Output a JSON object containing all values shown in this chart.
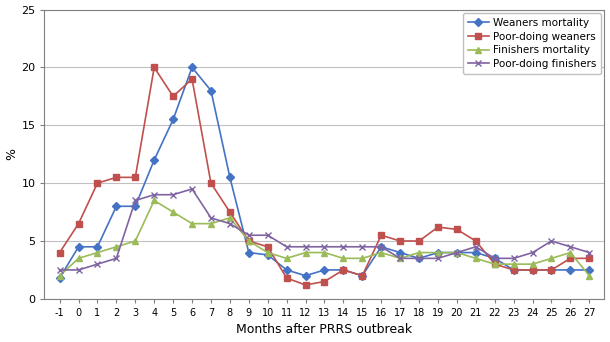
{
  "x": [
    -1,
    0,
    1,
    2,
    3,
    4,
    5,
    6,
    7,
    8,
    9,
    10,
    11,
    12,
    13,
    14,
    15,
    16,
    17,
    18,
    19,
    20,
    21,
    22,
    23,
    24,
    25,
    26,
    27
  ],
  "weaners_mortality": [
    1.8,
    4.5,
    4.5,
    8.0,
    8.0,
    12.0,
    15.5,
    20.0,
    18.0,
    10.5,
    4.0,
    3.8,
    2.5,
    2.0,
    2.5,
    2.5,
    2.0,
    4.5,
    4.0,
    3.5,
    4.0,
    4.0,
    4.0,
    3.5,
    2.5,
    2.5,
    2.5,
    2.5,
    2.5
  ],
  "poor_doing_weaners": [
    4.0,
    6.5,
    10.0,
    10.5,
    10.5,
    20.0,
    17.5,
    19.0,
    10.0,
    7.5,
    5.0,
    4.5,
    1.8,
    1.2,
    1.5,
    2.5,
    2.0,
    5.5,
    5.0,
    5.0,
    6.2,
    6.0,
    5.0,
    3.0,
    2.5,
    2.5,
    2.5,
    3.5,
    3.5
  ],
  "finishers_mortality": [
    2.0,
    3.5,
    4.0,
    4.5,
    5.0,
    8.5,
    7.5,
    6.5,
    6.5,
    7.0,
    5.0,
    4.0,
    3.5,
    4.0,
    4.0,
    3.5,
    3.5,
    4.0,
    3.5,
    4.0,
    4.0,
    4.0,
    3.5,
    3.0,
    3.0,
    3.0,
    3.5,
    4.0,
    2.0
  ],
  "poor_doing_finishers": [
    2.5,
    2.5,
    3.0,
    3.5,
    8.5,
    9.0,
    9.0,
    9.5,
    7.0,
    6.5,
    5.5,
    5.5,
    4.5,
    4.5,
    4.5,
    4.5,
    4.5,
    4.5,
    3.5,
    3.5,
    3.5,
    4.0,
    4.5,
    3.5,
    3.5,
    4.0,
    5.0,
    4.5,
    4.0
  ],
  "weaners_color": "#4472C4",
  "poor_weaners_color": "#C0504D",
  "finishers_color": "#9BBB59",
  "poor_finishers_color": "#8064A2",
  "xlabel": "Months after PRRS outbreak",
  "ylabel": "%",
  "ylim": [
    0,
    25
  ],
  "yticks": [
    0,
    5,
    10,
    15,
    20,
    25
  ],
  "legend_labels": [
    "Weaners mortality",
    "Poor-doing weaners",
    "Finishers mortality",
    "Poor-doing finishers"
  ],
  "bg_color": "#F2F2F2",
  "fig_bg": "#FFFFFF"
}
